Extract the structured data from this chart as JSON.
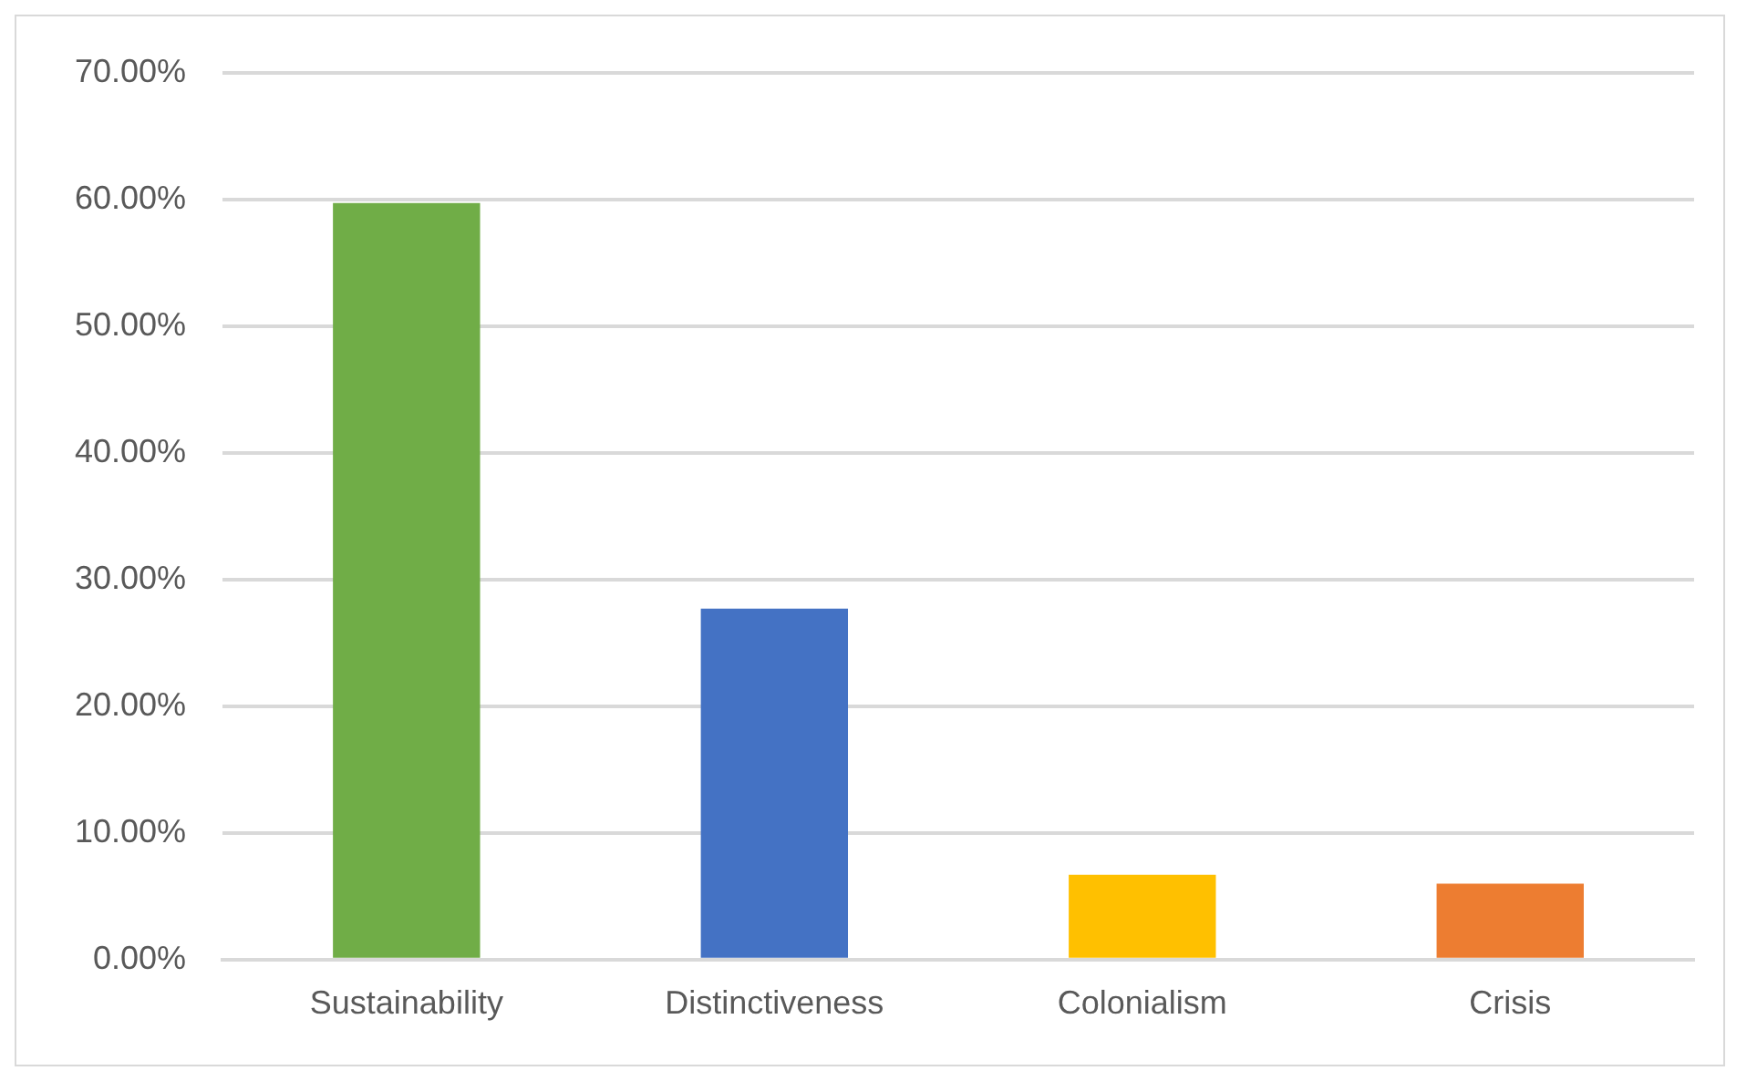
{
  "chart_data": {
    "type": "bar",
    "categories": [
      "Sustainability",
      "Distinctiveness",
      "Colonialism",
      "Crisis"
    ],
    "values": [
      59.7,
      27.7,
      6.7,
      6.0
    ],
    "colors": [
      "#70ad47",
      "#4472c4",
      "#ffc000",
      "#ed7d31"
    ],
    "ylim": [
      0,
      70
    ],
    "yticks": [
      {
        "value": 0,
        "label": "0.00%"
      },
      {
        "value": 10,
        "label": "10.00%"
      },
      {
        "value": 20,
        "label": "20.00%"
      },
      {
        "value": 30,
        "label": "30.00%"
      },
      {
        "value": 40,
        "label": "40.00%"
      },
      {
        "value": 50,
        "label": "50.00%"
      },
      {
        "value": 60,
        "label": "60.00%"
      },
      {
        "value": 70,
        "label": "70.00%"
      }
    ],
    "grid": "y",
    "legend": false
  }
}
